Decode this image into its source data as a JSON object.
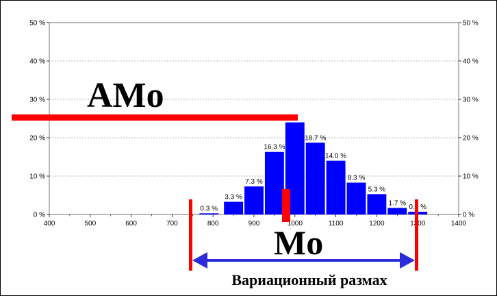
{
  "chart_data": {
    "type": "bar",
    "x": [
      790,
      850,
      900,
      950,
      1000,
      1050,
      1100,
      1150,
      1200,
      1250,
      1300
    ],
    "values": [
      0.3,
      3.3,
      7.3,
      16.3,
      24.0,
      18.7,
      14.0,
      8.3,
      5.3,
      1.7,
      0.7
    ],
    "data_labels": [
      "0.3 %",
      "3.3 %",
      "7.3 %",
      "16.3 %",
      "",
      "18.7 %",
      "14.0 %",
      "8.3 %",
      "5.3 %",
      "1.7 %",
      "0.7 %"
    ],
    "xlim": [
      400,
      1400
    ],
    "ylim": [
      0,
      50
    ],
    "x_ticks": [
      "400",
      "500",
      "600",
      "700",
      "800",
      "900",
      "1000",
      "1100",
      "1200",
      "1300",
      "1400"
    ],
    "y_ticks": [
      "0 %",
      "10 %",
      "20 %",
      "30 %",
      "40 %",
      "50 %"
    ],
    "grid": true,
    "bar_color": "#0000ff",
    "marker_color": "#ff0000",
    "arrow_color": "#2b2bd9"
  },
  "annotations": {
    "amo": "AMo",
    "mo": "Mo",
    "range_caption": "Вариационный размах"
  }
}
